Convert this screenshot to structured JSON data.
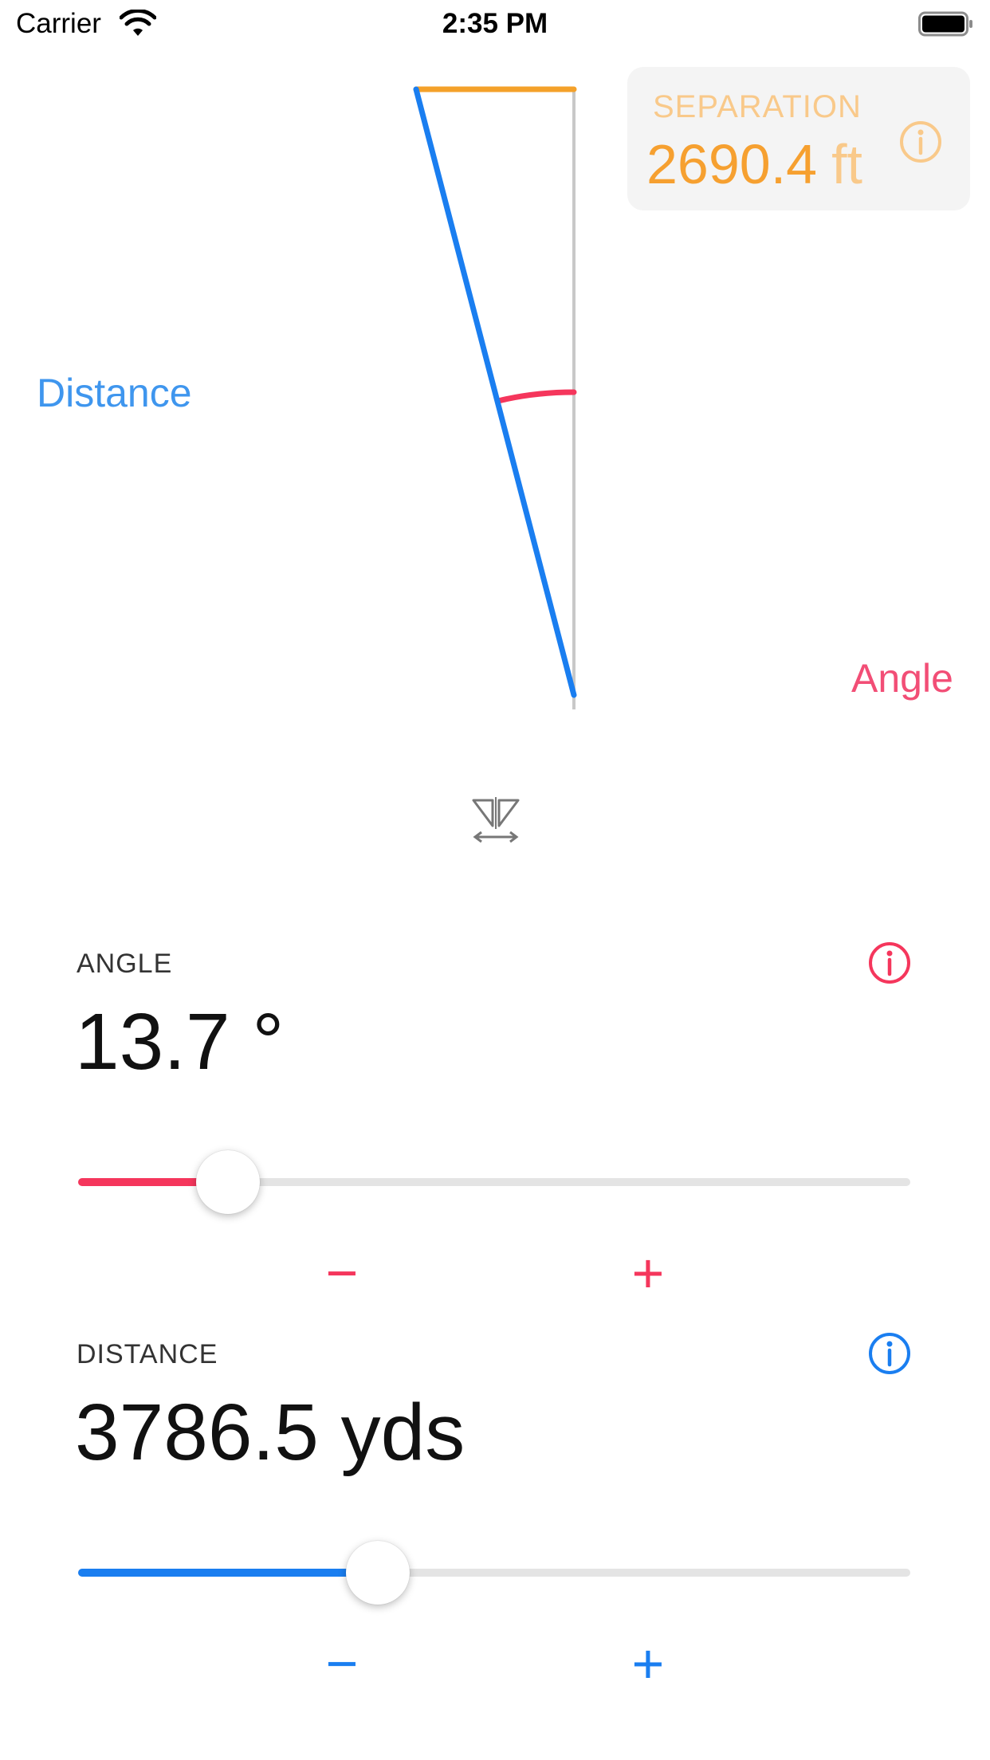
{
  "status_bar": {
    "carrier": "Carrier",
    "time": "2:35 PM"
  },
  "separation": {
    "label": "SEPARATION",
    "value": "2690.4",
    "unit": "ft",
    "color": "#f6a030",
    "info_icon": "info-circle-icon"
  },
  "diagram": {
    "distance_caption": "Distance",
    "angle_caption": "Angle",
    "distance_color": "#1a7ef0",
    "angle_color": "#f5365c",
    "separation_color": "#f4a12a",
    "reference_color": "#c8c8c8"
  },
  "mirror_button": {
    "icon": "mirror-flip-icon"
  },
  "angle": {
    "label": "ANGLE",
    "value": "13.7 °",
    "slider_fraction": 0.18,
    "accent": "#f5365c",
    "minus": "−",
    "plus": "+"
  },
  "distance": {
    "label": "DISTANCE",
    "value": "3786.5 yds",
    "slider_fraction": 0.36,
    "accent": "#1a7ef0",
    "minus": "−",
    "plus": "+"
  }
}
